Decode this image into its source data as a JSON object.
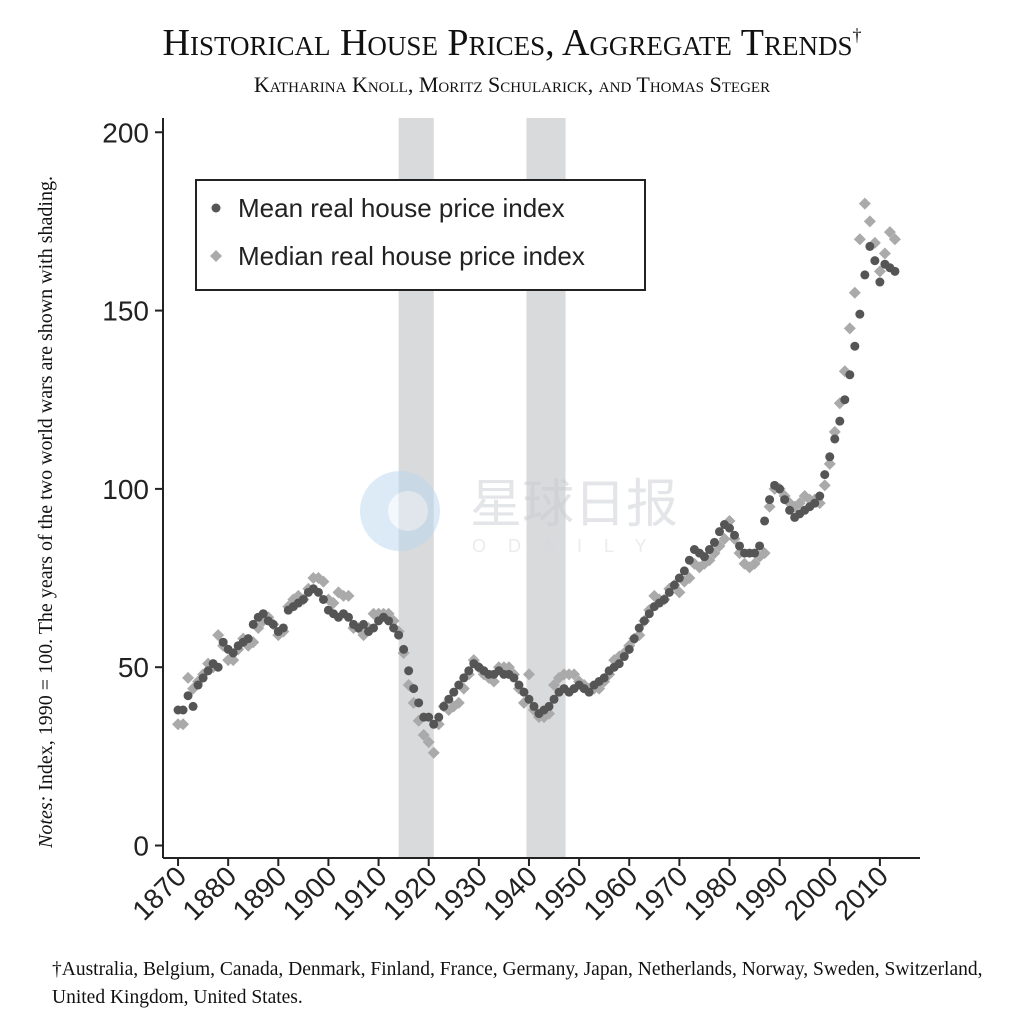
{
  "chart_data": {
    "type": "scatter",
    "title": "Historical House Prices, Aggregate Trends",
    "title_mark": "†",
    "subtitle": "Katharina Knoll, Moritz Schularick, and Thomas Steger",
    "notes_label": "Notes:",
    "notes": "Index, 1990 = 100. The years of the two world wars are shown with shading.",
    "footnote": "†Australia, Belgium, Canada, Denmark, Finland, France, Germany, Japan, Netherlands, Norway, Sweden, Switzerland, United Kingdom, United States.",
    "x": [
      1870,
      1871,
      1872,
      1873,
      1874,
      1875,
      1876,
      1877,
      1878,
      1879,
      1880,
      1881,
      1882,
      1883,
      1884,
      1885,
      1886,
      1887,
      1888,
      1889,
      1890,
      1891,
      1892,
      1893,
      1894,
      1895,
      1896,
      1897,
      1898,
      1899,
      1900,
      1901,
      1902,
      1903,
      1904,
      1905,
      1906,
      1907,
      1908,
      1909,
      1910,
      1911,
      1912,
      1913,
      1914,
      1915,
      1916,
      1917,
      1918,
      1919,
      1920,
      1921,
      1922,
      1923,
      1924,
      1925,
      1926,
      1927,
      1928,
      1929,
      1930,
      1931,
      1932,
      1933,
      1934,
      1935,
      1936,
      1937,
      1938,
      1939,
      1940,
      1941,
      1942,
      1943,
      1944,
      1945,
      1946,
      1947,
      1948,
      1949,
      1950,
      1951,
      1952,
      1953,
      1954,
      1955,
      1956,
      1957,
      1958,
      1959,
      1960,
      1961,
      1962,
      1963,
      1964,
      1965,
      1966,
      1967,
      1968,
      1969,
      1970,
      1971,
      1972,
      1973,
      1974,
      1975,
      1976,
      1977,
      1978,
      1979,
      1980,
      1981,
      1982,
      1983,
      1984,
      1985,
      1986,
      1987,
      1988,
      1989,
      1990,
      1991,
      1992,
      1993,
      1994,
      1995,
      1996,
      1997,
      1998,
      1999,
      2000,
      2001,
      2002,
      2003,
      2004,
      2005,
      2006,
      2007,
      2008,
      2009,
      2010,
      2011,
      2012,
      2013
    ],
    "series": [
      {
        "name": "Mean real house price index",
        "color": "#555555",
        "marker": "circle",
        "values": [
          38,
          38,
          42,
          39,
          45,
          47,
          49,
          51,
          50,
          57,
          55,
          54,
          56,
          57,
          58,
          62,
          64,
          65,
          63,
          62,
          60,
          61,
          66,
          67,
          68,
          69,
          71,
          72,
          71,
          69,
          66,
          65,
          64,
          65,
          64,
          62,
          61,
          62,
          60,
          61,
          63,
          64,
          63,
          61,
          59,
          55,
          49,
          44,
          40,
          36,
          36,
          34,
          36,
          39,
          41,
          43,
          45,
          47,
          49,
          51,
          50,
          49,
          48,
          48,
          49,
          48,
          48,
          47,
          45,
          43,
          41,
          39,
          37,
          38,
          39,
          41,
          43,
          44,
          43,
          44,
          45,
          44,
          43,
          45,
          46,
          47,
          49,
          50,
          51,
          53,
          55,
          58,
          61,
          63,
          65,
          67,
          68,
          69,
          71,
          73,
          75,
          77,
          80,
          83,
          82,
          81,
          83,
          85,
          88,
          90,
          89,
          87,
          84,
          82,
          82,
          82,
          84,
          91,
          97,
          101,
          100,
          97,
          94,
          92,
          93,
          94,
          95,
          96,
          98,
          104,
          109,
          114,
          119,
          125,
          132,
          140,
          149,
          160,
          168,
          164,
          158,
          163,
          162,
          161
        ]
      },
      {
        "name": "Median real house price index",
        "color": "#aaaaaa",
        "marker": "diamond",
        "values": [
          34,
          34,
          47,
          44,
          46,
          48,
          51,
          50,
          59,
          56,
          52,
          52,
          55,
          58,
          56,
          57,
          61,
          63,
          64,
          62,
          59,
          60,
          67,
          69,
          70,
          69,
          72,
          75,
          75,
          74,
          69,
          68,
          71,
          70,
          70,
          61,
          61,
          59,
          61,
          65,
          65,
          65,
          65,
          63,
          60,
          54,
          45,
          40,
          35,
          31,
          29,
          26,
          34,
          39,
          38,
          39,
          40,
          44,
          48,
          52,
          50,
          48,
          47,
          46,
          50,
          50,
          50,
          48,
          44,
          40,
          48,
          38,
          36,
          36,
          37,
          45,
          47,
          48,
          48,
          48,
          46,
          45,
          44,
          44,
          44,
          46,
          48,
          52,
          53,
          54,
          56,
          58,
          59,
          63,
          66,
          70,
          69,
          69,
          72,
          73,
          71,
          74,
          75,
          79,
          78,
          79,
          80,
          82,
          84,
          86,
          91,
          86,
          82,
          79,
          78,
          79,
          81,
          82,
          95,
          100,
          100,
          98,
          96,
          95,
          96,
          98,
          97,
          97,
          96,
          101,
          107,
          116,
          124,
          133,
          145,
          155,
          170,
          180,
          175,
          169,
          161,
          166,
          172,
          170
        ]
      }
    ],
    "shaded_periods": [
      [
        1914,
        1921
      ],
      [
        1939.5,
        1947.3
      ]
    ],
    "shade_color": "#d9dadc",
    "xlim": [
      1867,
      2018
    ],
    "xticks": [
      1870,
      1880,
      1890,
      1900,
      1910,
      1920,
      1930,
      1940,
      1950,
      1960,
      1970,
      1980,
      1990,
      2000,
      2010
    ],
    "ylim": [
      -3.5,
      204
    ],
    "yticks": [
      0,
      50,
      100,
      150,
      200
    ],
    "grid": false,
    "legend": "top-left"
  },
  "watermark": {
    "text": "星球日报",
    "subtext": "ODAILY"
  }
}
